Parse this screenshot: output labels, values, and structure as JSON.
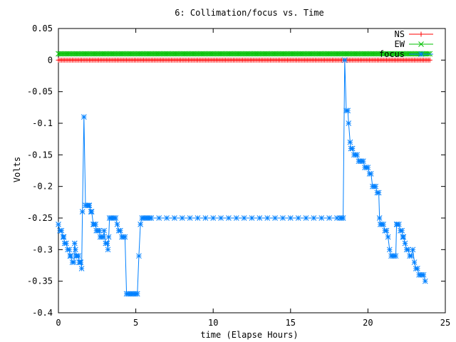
{
  "chart_data": {
    "type": "line",
    "title": "6: Collimation/focus vs. Time",
    "xlabel": "time (Elapse Hours)",
    "ylabel": "Volts",
    "xlim": [
      0,
      25
    ],
    "ylim": [
      -0.4,
      0.05
    ],
    "xticks": [
      0,
      5,
      10,
      15,
      20,
      25
    ],
    "xtick_labels": [
      "0",
      "5",
      "10",
      "15",
      "20",
      "25"
    ],
    "yticks": [
      0.05,
      0,
      -0.05,
      -0.1,
      -0.15,
      -0.2,
      -0.25,
      -0.3,
      -0.35,
      -0.4
    ],
    "ytick_labels": [
      "0.05",
      "0",
      "-0.05",
      "-0.1",
      "-0.15",
      "-0.2",
      "-0.25",
      "-0.3",
      "-0.35",
      "-0.4"
    ],
    "grid": false,
    "legend_position": "top-right",
    "series": [
      {
        "name": "NS",
        "color": "#ff0000",
        "marker": "plus",
        "constant": 0.0,
        "x_range": [
          0,
          24
        ],
        "step": 0.1
      },
      {
        "name": "EW",
        "color": "#00c000",
        "marker": "cross",
        "constant": 0.01,
        "x_range": [
          0,
          24
        ],
        "step": 0.1
      },
      {
        "name": "focus",
        "color": "#0080ff",
        "marker": "star",
        "points": [
          [
            0.0,
            -0.26
          ],
          [
            0.1,
            -0.27
          ],
          [
            0.2,
            -0.27
          ],
          [
            0.3,
            -0.28
          ],
          [
            0.35,
            -0.28
          ],
          [
            0.4,
            -0.29
          ],
          [
            0.5,
            -0.29
          ],
          [
            0.6,
            -0.3
          ],
          [
            0.7,
            -0.3
          ],
          [
            0.75,
            -0.31
          ],
          [
            0.8,
            -0.31
          ],
          [
            0.9,
            -0.32
          ],
          [
            1.0,
            -0.32
          ],
          [
            1.05,
            -0.29
          ],
          [
            1.1,
            -0.3
          ],
          [
            1.15,
            -0.31
          ],
          [
            1.2,
            -0.31
          ],
          [
            1.3,
            -0.31
          ],
          [
            1.35,
            -0.32
          ],
          [
            1.4,
            -0.32
          ],
          [
            1.45,
            -0.32
          ],
          [
            1.5,
            -0.33
          ],
          [
            1.55,
            -0.24
          ],
          [
            1.65,
            -0.09
          ],
          [
            1.75,
            -0.23
          ],
          [
            1.85,
            -0.23
          ],
          [
            1.95,
            -0.23
          ],
          [
            2.0,
            -0.23
          ],
          [
            2.1,
            -0.24
          ],
          [
            2.15,
            -0.24
          ],
          [
            2.25,
            -0.26
          ],
          [
            2.3,
            -0.26
          ],
          [
            2.4,
            -0.26
          ],
          [
            2.45,
            -0.27
          ],
          [
            2.55,
            -0.27
          ],
          [
            2.65,
            -0.27
          ],
          [
            2.7,
            -0.28
          ],
          [
            2.8,
            -0.28
          ],
          [
            2.9,
            -0.28
          ],
          [
            2.95,
            -0.27
          ],
          [
            3.05,
            -0.29
          ],
          [
            3.15,
            -0.29
          ],
          [
            3.2,
            -0.3
          ],
          [
            3.25,
            -0.28
          ],
          [
            3.3,
            -0.25
          ],
          [
            3.4,
            -0.25
          ],
          [
            3.5,
            -0.25
          ],
          [
            3.6,
            -0.25
          ],
          [
            3.7,
            -0.25
          ],
          [
            3.8,
            -0.26
          ],
          [
            3.9,
            -0.27
          ],
          [
            4.0,
            -0.27
          ],
          [
            4.1,
            -0.28
          ],
          [
            4.2,
            -0.28
          ],
          [
            4.3,
            -0.28
          ],
          [
            4.4,
            -0.37
          ],
          [
            4.5,
            -0.37
          ],
          [
            4.6,
            -0.37
          ],
          [
            4.7,
            -0.37
          ],
          [
            4.8,
            -0.37
          ],
          [
            4.9,
            -0.37
          ],
          [
            5.0,
            -0.37
          ],
          [
            5.1,
            -0.37
          ],
          [
            5.2,
            -0.31
          ],
          [
            5.3,
            -0.26
          ],
          [
            5.4,
            -0.25
          ],
          [
            5.5,
            -0.25
          ],
          [
            5.6,
            -0.25
          ],
          [
            5.7,
            -0.25
          ],
          [
            5.8,
            -0.25
          ],
          [
            5.9,
            -0.25
          ],
          [
            6.0,
            -0.25
          ],
          [
            6.5,
            -0.25
          ],
          [
            7.0,
            -0.25
          ],
          [
            7.5,
            -0.25
          ],
          [
            8.0,
            -0.25
          ],
          [
            8.5,
            -0.25
          ],
          [
            9.0,
            -0.25
          ],
          [
            9.5,
            -0.25
          ],
          [
            10.0,
            -0.25
          ],
          [
            10.5,
            -0.25
          ],
          [
            11.0,
            -0.25
          ],
          [
            11.5,
            -0.25
          ],
          [
            12.0,
            -0.25
          ],
          [
            12.5,
            -0.25
          ],
          [
            13.0,
            -0.25
          ],
          [
            13.5,
            -0.25
          ],
          [
            14.0,
            -0.25
          ],
          [
            14.5,
            -0.25
          ],
          [
            15.0,
            -0.25
          ],
          [
            15.5,
            -0.25
          ],
          [
            16.0,
            -0.25
          ],
          [
            16.5,
            -0.25
          ],
          [
            17.0,
            -0.25
          ],
          [
            17.5,
            -0.25
          ],
          [
            18.0,
            -0.25
          ],
          [
            18.2,
            -0.25
          ],
          [
            18.3,
            -0.25
          ],
          [
            18.4,
            -0.25
          ],
          [
            18.5,
            0.0
          ],
          [
            18.6,
            -0.08
          ],
          [
            18.7,
            -0.08
          ],
          [
            18.75,
            -0.1
          ],
          [
            18.85,
            -0.13
          ],
          [
            18.9,
            -0.14
          ],
          [
            19.0,
            -0.14
          ],
          [
            19.1,
            -0.15
          ],
          [
            19.2,
            -0.15
          ],
          [
            19.3,
            -0.15
          ],
          [
            19.4,
            -0.16
          ],
          [
            19.5,
            -0.16
          ],
          [
            19.6,
            -0.16
          ],
          [
            19.7,
            -0.16
          ],
          [
            19.8,
            -0.17
          ],
          [
            19.9,
            -0.17
          ],
          [
            20.0,
            -0.17
          ],
          [
            20.1,
            -0.18
          ],
          [
            20.2,
            -0.18
          ],
          [
            20.3,
            -0.2
          ],
          [
            20.4,
            -0.2
          ],
          [
            20.5,
            -0.2
          ],
          [
            20.6,
            -0.21
          ],
          [
            20.7,
            -0.21
          ],
          [
            20.75,
            -0.25
          ],
          [
            20.8,
            -0.26
          ],
          [
            20.9,
            -0.26
          ],
          [
            21.0,
            -0.26
          ],
          [
            21.1,
            -0.27
          ],
          [
            21.2,
            -0.27
          ],
          [
            21.3,
            -0.28
          ],
          [
            21.4,
            -0.3
          ],
          [
            21.5,
            -0.31
          ],
          [
            21.6,
            -0.31
          ],
          [
            21.7,
            -0.31
          ],
          [
            21.8,
            -0.31
          ],
          [
            21.85,
            -0.26
          ],
          [
            21.9,
            -0.26
          ],
          [
            22.0,
            -0.26
          ],
          [
            22.1,
            -0.27
          ],
          [
            22.2,
            -0.27
          ],
          [
            22.25,
            -0.28
          ],
          [
            22.3,
            -0.28
          ],
          [
            22.4,
            -0.29
          ],
          [
            22.5,
            -0.3
          ],
          [
            22.6,
            -0.3
          ],
          [
            22.7,
            -0.31
          ],
          [
            22.8,
            -0.31
          ],
          [
            22.9,
            -0.3
          ],
          [
            23.0,
            -0.32
          ],
          [
            23.1,
            -0.33
          ],
          [
            23.2,
            -0.33
          ],
          [
            23.3,
            -0.34
          ],
          [
            23.4,
            -0.34
          ],
          [
            23.5,
            -0.34
          ],
          [
            23.6,
            -0.34
          ],
          [
            23.7,
            -0.35
          ]
        ]
      }
    ]
  }
}
